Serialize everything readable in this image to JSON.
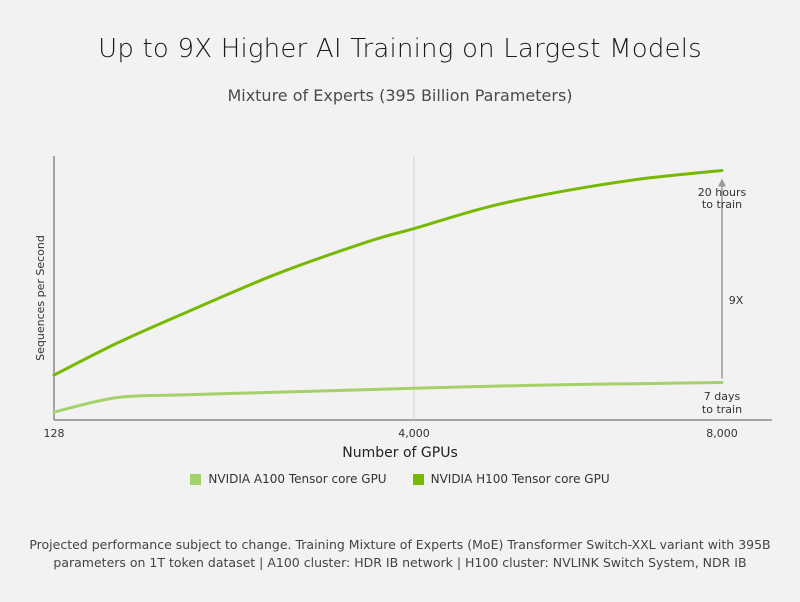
{
  "title": "Up to 9X Higher AI Training on Largest Models",
  "subtitle": "Mixture of Experts (395 Billion Parameters)",
  "chart_data": {
    "type": "line",
    "title": "Up to 9X Higher AI Training on Largest Models",
    "subtitle": "Mixture of Experts (395 Billion Parameters)",
    "xlabel": "Number of GPUs",
    "ylabel": "Sequences per Second",
    "x_ticks": [
      "128",
      "4,000",
      "8,000"
    ],
    "x_tick_values": [
      128,
      4000,
      8000
    ],
    "xlim": [
      128,
      8000
    ],
    "ylim": [
      0,
      10
    ],
    "grid": false,
    "legend_position": "bottom",
    "x": [
      128,
      800,
      1500,
      2500,
      3500,
      4000,
      5000,
      6000,
      7000,
      8000
    ],
    "series": [
      {
        "name": "NVIDIA A100 Tensor core GPU",
        "color": "#a5d16a",
        "values": [
          0.3,
          0.85,
          0.95,
          1.05,
          1.15,
          1.2,
          1.28,
          1.34,
          1.38,
          1.42
        ]
      },
      {
        "name": "NVIDIA H100 Tensor core GPU",
        "color": "#76b900",
        "values": [
          1.7,
          2.9,
          4.0,
          5.5,
          6.75,
          7.25,
          8.1,
          8.7,
          9.15,
          9.45
        ]
      }
    ],
    "annotations": {
      "top_label_line1": "20 hours",
      "top_label_line2": "to train",
      "bottom_label_line1": "7 days",
      "bottom_label_line2": "to train",
      "ratio_label": "9X"
    }
  },
  "legend": [
    {
      "label": "NVIDIA A100 Tensor core GPU",
      "color": "#a5d16a"
    },
    {
      "label": "NVIDIA H100 Tensor core GPU",
      "color": "#76b900"
    }
  ],
  "footnote_line1": "Projected performance subject to change. Training Mixture of Experts (MoE) Transformer Switch-XXL variant with 395B",
  "footnote_line2": "parameters on 1T token dataset | A100 cluster: HDR IB network | H100 cluster: NVLINK Switch System, NDR IB",
  "colors": {
    "background": "#f2f2f2",
    "axis": "#555555",
    "divider": "#cfcfcf",
    "arrow": "#9a9a9a"
  }
}
